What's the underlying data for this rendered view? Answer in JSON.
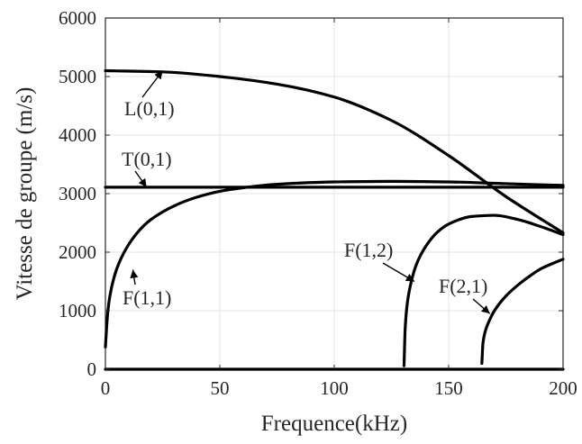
{
  "chart_data": {
    "type": "line",
    "title": "",
    "xlabel": "Frequence(kHz)",
    "ylabel": "Vitesse de groupe (m/s)",
    "xlim": [
      0,
      200
    ],
    "ylim": [
      0,
      6000
    ],
    "xticks": [
      0,
      50,
      100,
      150,
      200
    ],
    "yticks": [
      0,
      1000,
      2000,
      3000,
      4000,
      5000,
      6000
    ],
    "grid": true,
    "series": [
      {
        "name": "L(0,1)",
        "x": [
          0,
          25,
          50,
          75,
          100,
          125,
          150,
          175,
          200
        ],
        "y": [
          5100,
          5080,
          5000,
          4870,
          4650,
          4250,
          3650,
          2950,
          2330
        ]
      },
      {
        "name": "T(0,1)",
        "x": [
          0,
          50,
          100,
          150,
          200
        ],
        "y": [
          3110,
          3110,
          3110,
          3110,
          3110
        ]
      },
      {
        "name": "F(1,1)",
        "x": [
          0,
          0.5,
          1,
          2,
          4,
          6,
          10,
          15,
          20,
          30,
          40,
          50,
          60,
          75,
          100,
          125,
          150,
          175,
          200
        ],
        "y": [
          380,
          700,
          960,
          1260,
          1600,
          1820,
          2120,
          2380,
          2560,
          2790,
          2940,
          3040,
          3100,
          3160,
          3200,
          3210,
          3200,
          3170,
          3140
        ]
      },
      {
        "name": "F(1,2)",
        "x": [
          130.5,
          131,
          132,
          134,
          136,
          140,
          145,
          150,
          160,
          170,
          180,
          190,
          200
        ],
        "y": [
          60,
          700,
          1150,
          1550,
          1800,
          2100,
          2340,
          2480,
          2610,
          2630,
          2560,
          2440,
          2300
        ]
      },
      {
        "name": "F(2,1)",
        "x": [
          164.5,
          165,
          166,
          168,
          170,
          175,
          180,
          185,
          190,
          195,
          200
        ],
        "y": [
          100,
          450,
          650,
          850,
          1000,
          1250,
          1430,
          1580,
          1710,
          1800,
          1880
        ]
      },
      {
        "name": "",
        "x": [
          0,
          200
        ],
        "y": [
          0,
          0
        ]
      }
    ],
    "annotations": [
      {
        "text": "L(0,1)",
        "x": 25,
        "y": 5100
      },
      {
        "text": "T(0,1)",
        "x": 18,
        "y": 3110
      },
      {
        "text": "F(1,1)",
        "x": 12,
        "y": 1700
      },
      {
        "text": "F(1,2)",
        "x": 135,
        "y": 1500
      },
      {
        "text": "F(2,1)",
        "x": 168,
        "y": 950
      }
    ]
  }
}
